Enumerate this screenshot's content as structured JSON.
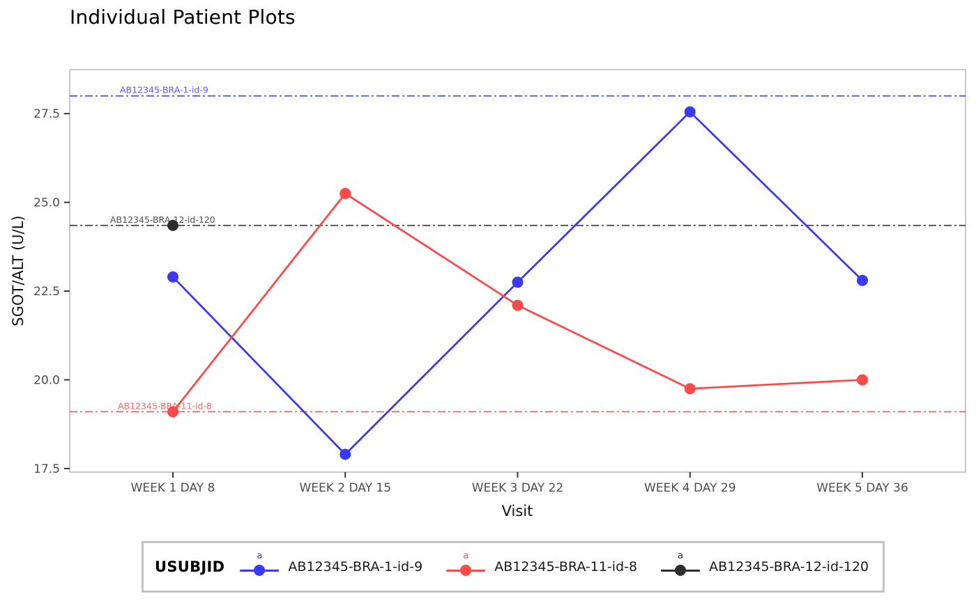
{
  "page": {
    "title": "Individual Patient Plots"
  },
  "chart_data": {
    "type": "line",
    "title": "Individual Patient Plots",
    "xlabel": "Visit",
    "ylabel": "SGOT/ALT (U/L)",
    "categories": [
      "WEEK 1 DAY 8",
      "WEEK 2 DAY 15",
      "WEEK 3 DAY 22",
      "WEEK 4 DAY 29",
      "WEEK 5 DAY 36"
    ],
    "yticks": [
      17.5,
      20.0,
      22.5,
      25.0,
      27.5
    ],
    "ylim": [
      17.4,
      28.74
    ],
    "grid": false,
    "legend": {
      "title": "USUBJID",
      "marker_letter": "a",
      "position": "bottom"
    },
    "series": [
      {
        "name": "AB12345-BRA-1-id-9",
        "color": "#3a3af2",
        "values": [
          22.9,
          17.9,
          22.75,
          27.55,
          22.8
        ],
        "baseline": 28.0
      },
      {
        "name": "AB12345-BRA-11-id-8",
        "color": "#fb4a4a",
        "values": [
          19.1,
          25.25,
          22.1,
          19.75,
          20.0
        ],
        "baseline": 19.1
      },
      {
        "name": "AB12345-BRA-12-id-120",
        "color": "#2e2e2e",
        "values": [
          24.35,
          null,
          null,
          null,
          null
        ],
        "baseline": 24.35
      }
    ]
  }
}
